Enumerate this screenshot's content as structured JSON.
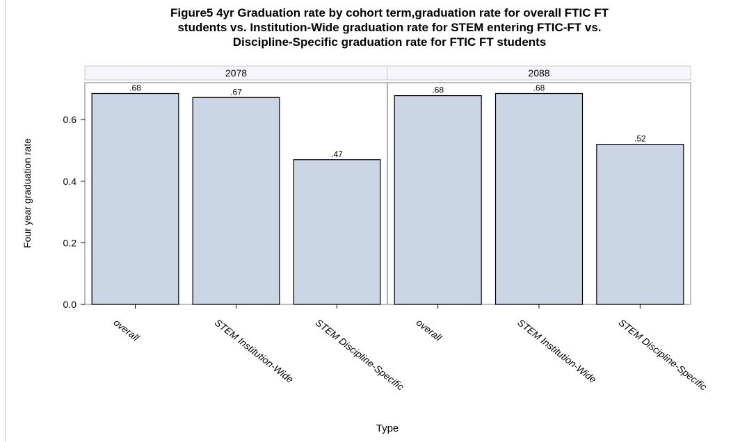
{
  "title_lines": [
    "Figure5 4yr Graduation rate by cohort term,graduation rate for overall FTIC FT",
    "students vs. Institution-Wide graduation rate for STEM entering FTIC-FT vs.",
    "Discipline-Specific graduation rate for FTIC FT students"
  ],
  "colors": {
    "bar_fill": "#cad5e5",
    "bar_stroke": "#000000",
    "panel_header": "#f5f6fb",
    "frame": "#a7a7a7"
  },
  "chart_data": {
    "type": "bar",
    "title": "Figure5 4yr Graduation rate by cohort term,graduation rate for overall FTIC FT students vs. Institution-Wide graduation rate for STEM entering FTIC-FT vs. Discipline-Specific graduation rate for FTIC FT students",
    "xlabel": "Type",
    "ylabel": "Four year graduation rate",
    "ylim": [
      0,
      0.72
    ],
    "yticks": [
      "0.0",
      "0.2",
      "0.4",
      "0.6"
    ],
    "grid": false,
    "panels": [
      {
        "panel_label": "2078",
        "categories": [
          "overall",
          "STEM Institution-Wide",
          "STEM Discipline-Specific"
        ],
        "values": [
          0.685,
          0.672,
          0.47
        ],
        "data_labels": [
          ".68",
          ".67",
          ".47"
        ]
      },
      {
        "panel_label": "2088",
        "categories": [
          "overall",
          "STEM Institution-Wide",
          "STEM Discipline-Specific"
        ],
        "values": [
          0.678,
          0.685,
          0.52
        ],
        "data_labels": [
          ".68",
          ".68",
          ".52"
        ]
      }
    ]
  }
}
